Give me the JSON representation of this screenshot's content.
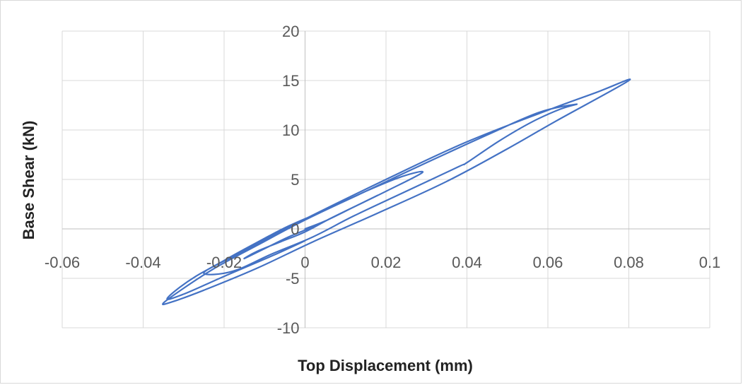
{
  "chart_data": {
    "type": "scatter",
    "title": "",
    "xlabel": "Top Displacement (mm)",
    "ylabel": "Base Shear (kN)",
    "xlim": [
      -0.06,
      0.1
    ],
    "ylim": [
      -10,
      20
    ],
    "x_ticks": [
      -0.06,
      -0.04,
      -0.02,
      0,
      0.02,
      0.04,
      0.06,
      0.08,
      0.1
    ],
    "x_tick_labels": [
      "-0.06",
      "-0.04",
      "-0.02",
      "0",
      "0.02",
      "0.04",
      "0.06",
      "0.08",
      "0.1"
    ],
    "y_ticks": [
      -10,
      -5,
      0,
      5,
      10,
      15,
      20
    ],
    "y_tick_labels": [
      "-10",
      "-5",
      "0",
      "5",
      "10",
      "15",
      "20"
    ],
    "grid": true,
    "legend": "none",
    "line_color": "#4472c4",
    "series": [
      {
        "style": "smooth-line",
        "points": [
          [
            0.0,
            0.0
          ],
          [
            0.005,
            0.8
          ],
          [
            0.012,
            2.2
          ],
          [
            0.018,
            3.4
          ],
          [
            0.013,
            2.4
          ],
          [
            0.006,
            1.0
          ],
          [
            0.0,
            -0.3
          ],
          [
            -0.006,
            -1.3
          ],
          [
            -0.012,
            -2.3
          ],
          [
            -0.015,
            -3.0
          ],
          [
            -0.01,
            -2.0
          ],
          [
            -0.004,
            -0.8
          ],
          [
            0.003,
            0.4
          ],
          [
            0.01,
            1.8
          ],
          [
            0.02,
            3.8
          ],
          [
            0.029,
            5.7
          ],
          [
            0.024,
            5.3
          ],
          [
            0.015,
            3.8
          ],
          [
            0.005,
            1.9
          ],
          [
            -0.004,
            0.3
          ],
          [
            -0.012,
            -1.4
          ],
          [
            -0.02,
            -3.2
          ],
          [
            -0.025,
            -4.5
          ],
          [
            -0.018,
            -4.3
          ],
          [
            -0.008,
            -2.5
          ],
          [
            0.002,
            -0.8
          ],
          [
            0.012,
            1.3
          ],
          [
            0.025,
            3.8
          ],
          [
            0.038,
            6.3
          ],
          [
            0.04,
            6.7
          ],
          [
            0.048,
            8.9
          ],
          [
            0.056,
            10.8
          ],
          [
            0.063,
            12.1
          ],
          [
            0.067,
            12.6
          ],
          [
            0.058,
            11.8
          ],
          [
            0.045,
            9.5
          ],
          [
            0.03,
            6.7
          ],
          [
            0.015,
            3.8
          ],
          [
            0.0,
            0.9
          ],
          [
            -0.012,
            -1.7
          ],
          [
            -0.022,
            -3.9
          ],
          [
            -0.03,
            -6.0
          ],
          [
            -0.035,
            -7.5
          ],
          [
            -0.033,
            -7.4
          ],
          [
            -0.025,
            -6.2
          ],
          [
            -0.012,
            -4.0
          ],
          [
            0.002,
            -1.3
          ],
          [
            0.018,
            1.6
          ],
          [
            0.035,
            4.8
          ],
          [
            0.05,
            8.1
          ],
          [
            0.062,
            10.9
          ],
          [
            0.08,
            15.0
          ],
          [
            0.072,
            13.8
          ],
          [
            0.06,
            12.0
          ],
          [
            0.04,
            8.8
          ],
          [
            0.02,
            5.0
          ],
          [
            0.0,
            1.0
          ],
          [
            -0.015,
            -2.2
          ],
          [
            -0.027,
            -4.8
          ],
          [
            -0.034,
            -7.0
          ],
          [
            -0.03,
            -6.6
          ],
          [
            -0.02,
            -4.8
          ],
          [
            -0.008,
            -2.7
          ],
          [
            0.0,
            -1.2
          ]
        ]
      }
    ]
  }
}
